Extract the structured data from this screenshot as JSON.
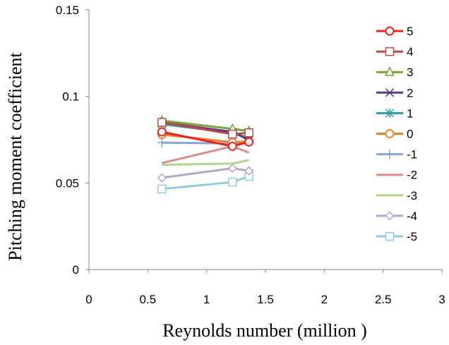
{
  "chart_data": {
    "type": "line",
    "title": "",
    "xlabel": "Reynolds number (million )",
    "ylabel": "Pitching moment coefficient",
    "xlim": [
      0,
      3
    ],
    "ylim": [
      0,
      0.15
    ],
    "x_ticks": [
      "0",
      "0.5",
      "1",
      "1.5",
      "2",
      "2.5",
      "3"
    ],
    "y_ticks": [
      "0",
      "0.05",
      "0.1",
      "0.15"
    ],
    "grid": false,
    "legend_placement": "right",
    "series": [
      {
        "name": "5",
        "color": "#e8231f",
        "marker": "circle",
        "x": [
          0.62,
          1.22,
          1.36
        ],
        "y": [
          0.0795,
          0.0712,
          0.0737
        ]
      },
      {
        "name": "4",
        "color": "#b84b45",
        "marker": "square",
        "x": [
          0.62,
          1.22,
          1.36
        ],
        "y": [
          0.085,
          0.0782,
          0.079
        ]
      },
      {
        "name": "3",
        "color": "#7aa33a",
        "marker": "triangle",
        "x": [
          0.62,
          1.22,
          1.36
        ],
        "y": [
          0.086,
          0.0812,
          0.08
        ]
      },
      {
        "name": "2",
        "color": "#5b3b8a",
        "marker": "x",
        "x": [
          0.62,
          1.22,
          1.36
        ],
        "y": [
          0.085,
          0.0795,
          0.0748
        ]
      },
      {
        "name": "1",
        "color": "#2a9aa7",
        "marker": "asterisk",
        "x": [
          0.62,
          1.22,
          1.36
        ],
        "y": [
          0.084,
          0.079,
          0.076
        ]
      },
      {
        "name": "0",
        "color": "#e8832a",
        "marker": "circle",
        "x": [
          0.62,
          1.22,
          1.36
        ],
        "y": [
          0.078,
          0.0735,
          0.074
        ]
      },
      {
        "name": "-1",
        "color": "#8aa4d4",
        "marker": "plus",
        "x": [
          0.62,
          1.22,
          1.36
        ],
        "y": [
          0.0733,
          0.0728,
          0.0733
        ]
      },
      {
        "name": "-2",
        "color": "#d98e89",
        "marker": "none",
        "x": [
          0.62,
          1.22,
          1.36
        ],
        "y": [
          0.0615,
          0.0712,
          0.0675
        ]
      },
      {
        "name": "-3",
        "color": "#b5d38e",
        "marker": "none",
        "x": [
          0.62,
          1.22,
          1.36
        ],
        "y": [
          0.0605,
          0.0612,
          0.0632
        ]
      },
      {
        "name": "-4",
        "color": "#b5a3cb",
        "marker": "diamond",
        "x": [
          0.62,
          1.22,
          1.36
        ],
        "y": [
          0.053,
          0.0585,
          0.057
        ]
      },
      {
        "name": "-5",
        "color": "#92ccdc",
        "marker": "square",
        "x": [
          0.62,
          1.22,
          1.36
        ],
        "y": [
          0.0465,
          0.0505,
          0.0538
        ]
      }
    ]
  }
}
